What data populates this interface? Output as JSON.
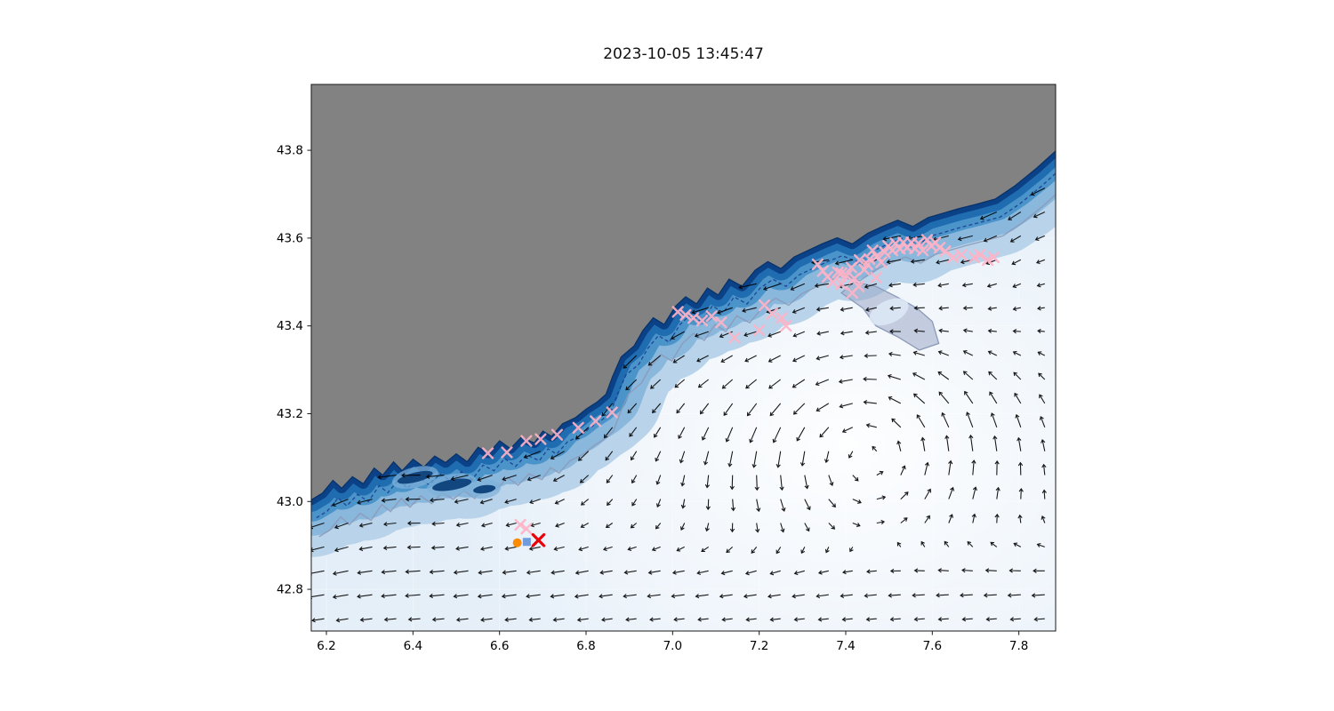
{
  "figure": {
    "title": "2023-10-05 13:45:47",
    "background": "#ffffff"
  },
  "axes": {
    "x_tick_labels": [
      "6.2",
      "6.4",
      "6.6",
      "6.8",
      "7.0",
      "7.2",
      "7.4",
      "7.6",
      "7.8"
    ],
    "y_tick_labels": [
      "42.8",
      "43.0",
      "43.2",
      "43.4",
      "43.6",
      "43.8"
    ]
  },
  "chart_data": {
    "type": "scatter",
    "subtype": "geographic map with bathymetry shading, current quiver field and station markers",
    "title": "2023-10-05 13:45:47",
    "x_axis": {
      "ticks": [
        6.2,
        6.4,
        6.6,
        6.8,
        7.0,
        7.2,
        7.4,
        7.6,
        7.8
      ],
      "range": [
        6.165,
        7.885
      ],
      "label": ""
    },
    "y_axis": {
      "ticks": [
        42.8,
        43.0,
        43.2,
        43.4,
        43.6,
        43.8
      ],
      "range": [
        42.705,
        43.95
      ],
      "label": ""
    },
    "grid": true,
    "colors": {
      "land": "#828282",
      "ocean_deep_band": [
        "#b9d4ea",
        "#8ab7dc",
        "#4a94ca",
        "#1f6cb0",
        "#0b4187",
        "#083268"
      ],
      "ocean_light": "#eaf2fa",
      "quiver": "#000000",
      "obs_marker": "#ffb3c6",
      "highlight_x": "#e8000b",
      "orange_marker": "#ff8c00",
      "blue_marker": "#6f9bdf",
      "dashed_contour": "#1b3d8f",
      "slate_contour": "#8b9ab8",
      "patch_fill": "#9aa8c7"
    },
    "land": {
      "coastline": [
        [
          6.165,
          43.005
        ],
        [
          6.19,
          43.02
        ],
        [
          6.215,
          43.05
        ],
        [
          6.235,
          43.032
        ],
        [
          6.26,
          43.058
        ],
        [
          6.285,
          43.042
        ],
        [
          6.31,
          43.078
        ],
        [
          6.33,
          43.062
        ],
        [
          6.355,
          43.092
        ],
        [
          6.375,
          43.072
        ],
        [
          6.4,
          43.098
        ],
        [
          6.425,
          43.08
        ],
        [
          6.45,
          43.105
        ],
        [
          6.475,
          43.09
        ],
        [
          6.5,
          43.11
        ],
        [
          6.525,
          43.092
        ],
        [
          6.55,
          43.125
        ],
        [
          6.575,
          43.112
        ],
        [
          6.6,
          43.14
        ],
        [
          6.625,
          43.122
        ],
        [
          6.65,
          43.148
        ],
        [
          6.68,
          43.135
        ],
        [
          6.7,
          43.162
        ],
        [
          6.72,
          43.15
        ],
        [
          6.745,
          43.178
        ],
        [
          6.775,
          43.192
        ],
        [
          6.8,
          43.212
        ],
        [
          6.825,
          43.228
        ],
        [
          6.845,
          43.245
        ],
        [
          6.86,
          43.285
        ],
        [
          6.88,
          43.33
        ],
        [
          6.91,
          43.355
        ],
        [
          6.93,
          43.39
        ],
        [
          6.955,
          43.42
        ],
        [
          6.98,
          43.405
        ],
        [
          7.005,
          43.445
        ],
        [
          7.03,
          43.468
        ],
        [
          7.055,
          43.452
        ],
        [
          7.08,
          43.488
        ],
        [
          7.105,
          43.472
        ],
        [
          7.13,
          43.508
        ],
        [
          7.16,
          43.492
        ],
        [
          7.19,
          43.528
        ],
        [
          7.22,
          43.548
        ],
        [
          7.25,
          43.532
        ],
        [
          7.28,
          43.558
        ],
        [
          7.31,
          43.572
        ],
        [
          7.345,
          43.588
        ],
        [
          7.38,
          43.602
        ],
        [
          7.415,
          43.588
        ],
        [
          7.45,
          43.612
        ],
        [
          7.485,
          43.628
        ],
        [
          7.52,
          43.642
        ],
        [
          7.555,
          43.628
        ],
        [
          7.59,
          43.648
        ],
        [
          7.625,
          43.658
        ],
        [
          7.66,
          43.668
        ],
        [
          7.7,
          43.678
        ],
        [
          7.745,
          43.69
        ],
        [
          7.79,
          43.72
        ],
        [
          7.84,
          43.76
        ],
        [
          7.885,
          43.8
        ]
      ]
    },
    "islands": [
      {
        "lon": 6.405,
        "lat": 43.055,
        "rx": 0.042,
        "ry": 0.011,
        "rot": -14
      },
      {
        "lon": 6.49,
        "lat": 43.038,
        "rx": 0.046,
        "ry": 0.012,
        "rot": -10
      },
      {
        "lon": 6.565,
        "lat": 43.028,
        "rx": 0.026,
        "ry": 0.009,
        "rot": -8
      }
    ],
    "contours": {
      "dashed_offset": {
        "dlon": 0.012,
        "dlat": -0.042
      },
      "slate_offset": {
        "dlon": 0.018,
        "dlat": -0.085
      }
    },
    "offshore_patch": {
      "polygon": [
        [
          7.39,
          43.475
        ],
        [
          7.44,
          43.44
        ],
        [
          7.47,
          43.4
        ],
        [
          7.52,
          43.375
        ],
        [
          7.57,
          43.345
        ],
        [
          7.615,
          43.36
        ],
        [
          7.6,
          43.41
        ],
        [
          7.565,
          43.44
        ],
        [
          7.52,
          43.465
        ],
        [
          7.47,
          43.49
        ],
        [
          7.42,
          43.5
        ]
      ],
      "hole": {
        "lon": 7.5,
        "lat": 43.432,
        "rx": 0.048,
        "ry": 0.026,
        "rot": -25
      }
    },
    "quiver": {
      "color": "#000000",
      "lon_step": 0.0555,
      "lat_step": 0.0545,
      "description": "surface current vectors: SW alongshore jet, westward southern flow, cyclonic gyre offshore"
    },
    "markers": {
      "observations": {
        "symbol": "x",
        "color": "#ffb3c6",
        "points": [
          [
            6.573,
            43.11
          ],
          [
            6.617,
            43.112
          ],
          [
            6.662,
            43.138
          ],
          [
            6.695,
            43.142
          ],
          [
            6.733,
            43.152
          ],
          [
            6.782,
            43.168
          ],
          [
            6.822,
            43.183
          ],
          [
            6.86,
            43.203
          ],
          [
            7.012,
            43.432
          ],
          [
            7.03,
            43.425
          ],
          [
            7.048,
            43.418
          ],
          [
            7.068,
            43.412
          ],
          [
            7.09,
            43.422
          ],
          [
            7.112,
            43.408
          ],
          [
            7.143,
            43.373
          ],
          [
            7.2,
            43.39
          ],
          [
            7.212,
            43.447
          ],
          [
            7.23,
            43.428
          ],
          [
            7.252,
            43.418
          ],
          [
            7.262,
            43.4
          ],
          [
            7.335,
            43.54
          ],
          [
            7.347,
            43.525
          ],
          [
            7.358,
            43.512
          ],
          [
            7.37,
            43.5
          ],
          [
            7.382,
            43.522
          ],
          [
            7.39,
            43.495
          ],
          [
            7.402,
            43.515
          ],
          [
            7.413,
            43.533
          ],
          [
            7.42,
            43.508
          ],
          [
            7.432,
            43.55
          ],
          [
            7.443,
            43.528
          ],
          [
            7.455,
            43.552
          ],
          [
            7.462,
            43.572
          ],
          [
            7.472,
            43.558
          ],
          [
            7.482,
            43.545
          ],
          [
            7.49,
            43.568
          ],
          [
            7.498,
            43.582
          ],
          [
            7.508,
            43.572
          ],
          [
            7.515,
            43.588
          ],
          [
            7.525,
            43.576
          ],
          [
            7.533,
            43.59
          ],
          [
            7.542,
            43.578
          ],
          [
            7.552,
            43.59
          ],
          [
            7.56,
            43.576
          ],
          [
            7.568,
            43.588
          ],
          [
            7.578,
            43.572
          ],
          [
            7.588,
            43.596
          ],
          [
            7.598,
            43.582
          ],
          [
            7.607,
            43.59
          ],
          [
            7.617,
            43.578
          ],
          [
            7.63,
            43.57
          ],
          [
            7.648,
            43.556
          ],
          [
            7.667,
            43.562
          ],
          [
            7.697,
            43.556
          ],
          [
            7.71,
            43.562
          ],
          [
            7.728,
            43.55
          ],
          [
            7.742,
            43.556
          ],
          [
            7.39,
            43.52
          ],
          [
            7.45,
            43.54
          ],
          [
            7.47,
            43.51
          ],
          [
            7.43,
            43.49
          ],
          [
            7.415,
            43.475
          ],
          [
            6.648,
            42.947
          ],
          [
            6.662,
            42.938
          ]
        ]
      },
      "highlight_x": {
        "symbol": "x",
        "color": "#e8000b",
        "point": [
          6.69,
          42.912
        ]
      },
      "orange_dot": {
        "symbol": "circle",
        "color": "#ff8c00",
        "point": [
          6.641,
          42.906
        ]
      },
      "blue_square": {
        "symbol": "square",
        "color": "#6f9bdf",
        "point": [
          6.663,
          42.908
        ]
      }
    }
  }
}
